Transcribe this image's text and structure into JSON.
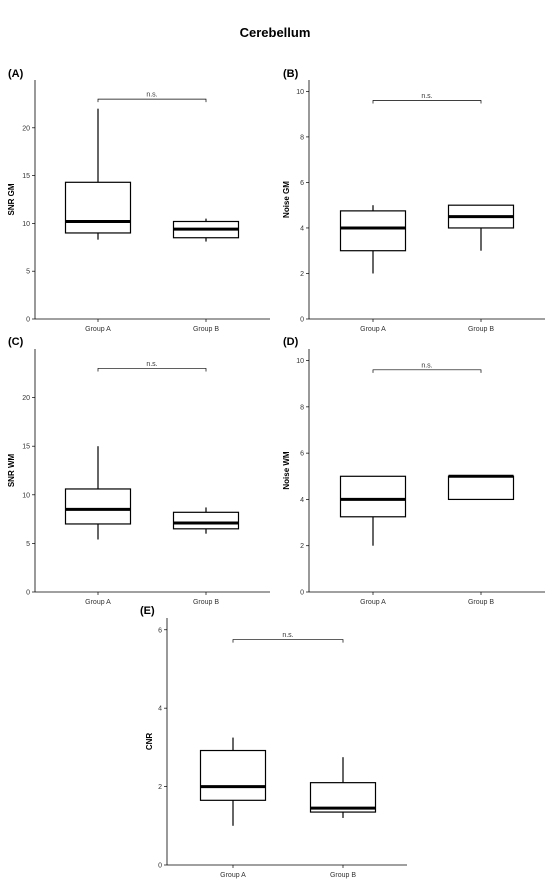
{
  "title": "Cerebellum",
  "chart_data": [
    {
      "panel": "(A)",
      "type": "box",
      "ylabel": "SNR GM",
      "categories": [
        "Group A",
        "Group B"
      ],
      "ylim": [
        0,
        25
      ],
      "yticks": [
        0,
        5,
        10,
        15,
        20
      ],
      "boxes": [
        {
          "group": "Group A",
          "min": 8.3,
          "q1": 9.0,
          "median": 10.2,
          "q3": 14.3,
          "max": 22.0
        },
        {
          "group": "Group B",
          "min": 8.1,
          "q1": 8.5,
          "median": 9.4,
          "q3": 10.2,
          "max": 10.5
        }
      ],
      "significance": "n.s.",
      "bracket_y": 23.0
    },
    {
      "panel": "(B)",
      "type": "box",
      "ylabel": "Noise GM",
      "categories": [
        "Group A",
        "Group B"
      ],
      "ylim": [
        0,
        10.5
      ],
      "yticks": [
        0,
        2,
        4,
        6,
        8,
        10
      ],
      "boxes": [
        {
          "group": "Group A",
          "min": 2.0,
          "q1": 3.0,
          "median": 4.0,
          "q3": 4.75,
          "max": 5.0
        },
        {
          "group": "Group B",
          "min": 3.0,
          "q1": 4.0,
          "median": 4.5,
          "q3": 5.0,
          "max": 5.0
        }
      ],
      "significance": "n.s.",
      "bracket_y": 9.6
    },
    {
      "panel": "(C)",
      "type": "box",
      "ylabel": "SNR WM",
      "categories": [
        "Group A",
        "Group B"
      ],
      "ylim": [
        0,
        25
      ],
      "yticks": [
        0,
        5,
        10,
        15,
        20
      ],
      "boxes": [
        {
          "group": "Group A",
          "min": 5.4,
          "q1": 7.0,
          "median": 8.5,
          "q3": 10.6,
          "max": 15.0
        },
        {
          "group": "Group B",
          "min": 6.0,
          "q1": 6.5,
          "median": 7.1,
          "q3": 8.2,
          "max": 8.7
        }
      ],
      "significance": "n.s.",
      "bracket_y": 23.0
    },
    {
      "panel": "(D)",
      "type": "box",
      "ylabel": "Noise WM",
      "categories": [
        "Group A",
        "Group B"
      ],
      "ylim": [
        0,
        10.5
      ],
      "yticks": [
        0,
        2,
        4,
        6,
        8,
        10
      ],
      "boxes": [
        {
          "group": "Group A",
          "min": 2.0,
          "q1": 3.25,
          "median": 4.0,
          "q3": 5.0,
          "max": 5.0
        },
        {
          "group": "Group B",
          "min": 4.0,
          "q1": 4.0,
          "median": 5.0,
          "q3": 5.0,
          "max": 5.0
        }
      ],
      "significance": "n.s.",
      "bracket_y": 9.6
    },
    {
      "panel": "(E)",
      "type": "box",
      "ylabel": "CNR",
      "categories": [
        "Group A",
        "Group B"
      ],
      "ylim": [
        0,
        6.3
      ],
      "yticks": [
        0,
        2,
        4,
        6
      ],
      "boxes": [
        {
          "group": "Group A",
          "min": 1.0,
          "q1": 1.65,
          "median": 2.0,
          "q3": 2.92,
          "max": 3.25
        },
        {
          "group": "Group B",
          "min": 1.2,
          "q1": 1.35,
          "median": 1.45,
          "q3": 2.1,
          "max": 2.75
        }
      ],
      "significance": "n.s.",
      "bracket_y": 5.75
    }
  ]
}
